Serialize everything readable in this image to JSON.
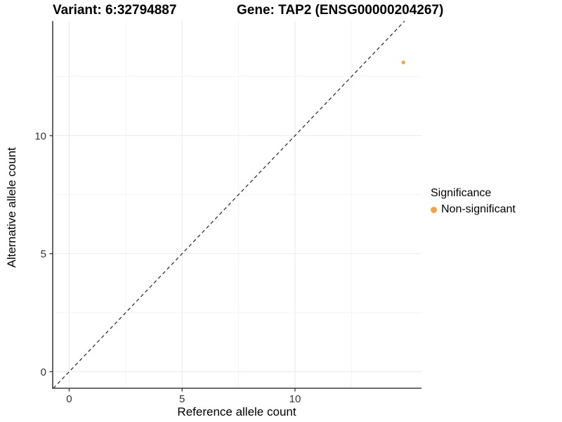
{
  "header": {
    "variant_title": "Variant: 6:32794887",
    "gene_title": "Gene: TAP2 (ENSG00000204267)"
  },
  "legend": {
    "title": "Significance",
    "items": [
      {
        "label": "Non-significant",
        "color": "#F9A242"
      }
    ]
  },
  "colors": {
    "point": "#F9A242",
    "axis_line": "#3f3f3f",
    "tick_label": "#333333",
    "major_grid": "#e9e9e9",
    "minor_grid": "#f4f4f4",
    "reference_line": "#1a1a1a",
    "background": "#ffffff"
  },
  "chart_data": {
    "type": "scatter",
    "title": "Variant: 6:32794887",
    "subtitle": "Gene: TAP2 (ENSG00000204267)",
    "xlabel": "Reference allele count",
    "ylabel": "Alternative allele count",
    "xlim": [
      -0.73,
      15.6
    ],
    "ylim": [
      -0.7,
      14.85
    ],
    "xticks": [
      0,
      5,
      10
    ],
    "yticks": [
      0,
      5,
      10
    ],
    "x_minor_breaks": [
      2.5,
      7.5,
      12.5
    ],
    "y_minor_breaks": [
      2.5,
      7.5,
      12.5
    ],
    "grid": true,
    "legend_position": "right",
    "series": [
      {
        "name": "Non-significant",
        "color": "#F9A242",
        "points": [
          {
            "x": 14.8,
            "y": 13.1
          }
        ]
      }
    ],
    "reference_line": {
      "name": "identity-line",
      "slope": 1,
      "intercept": 0,
      "style": "dashed",
      "color": "#1a1a1a"
    }
  }
}
